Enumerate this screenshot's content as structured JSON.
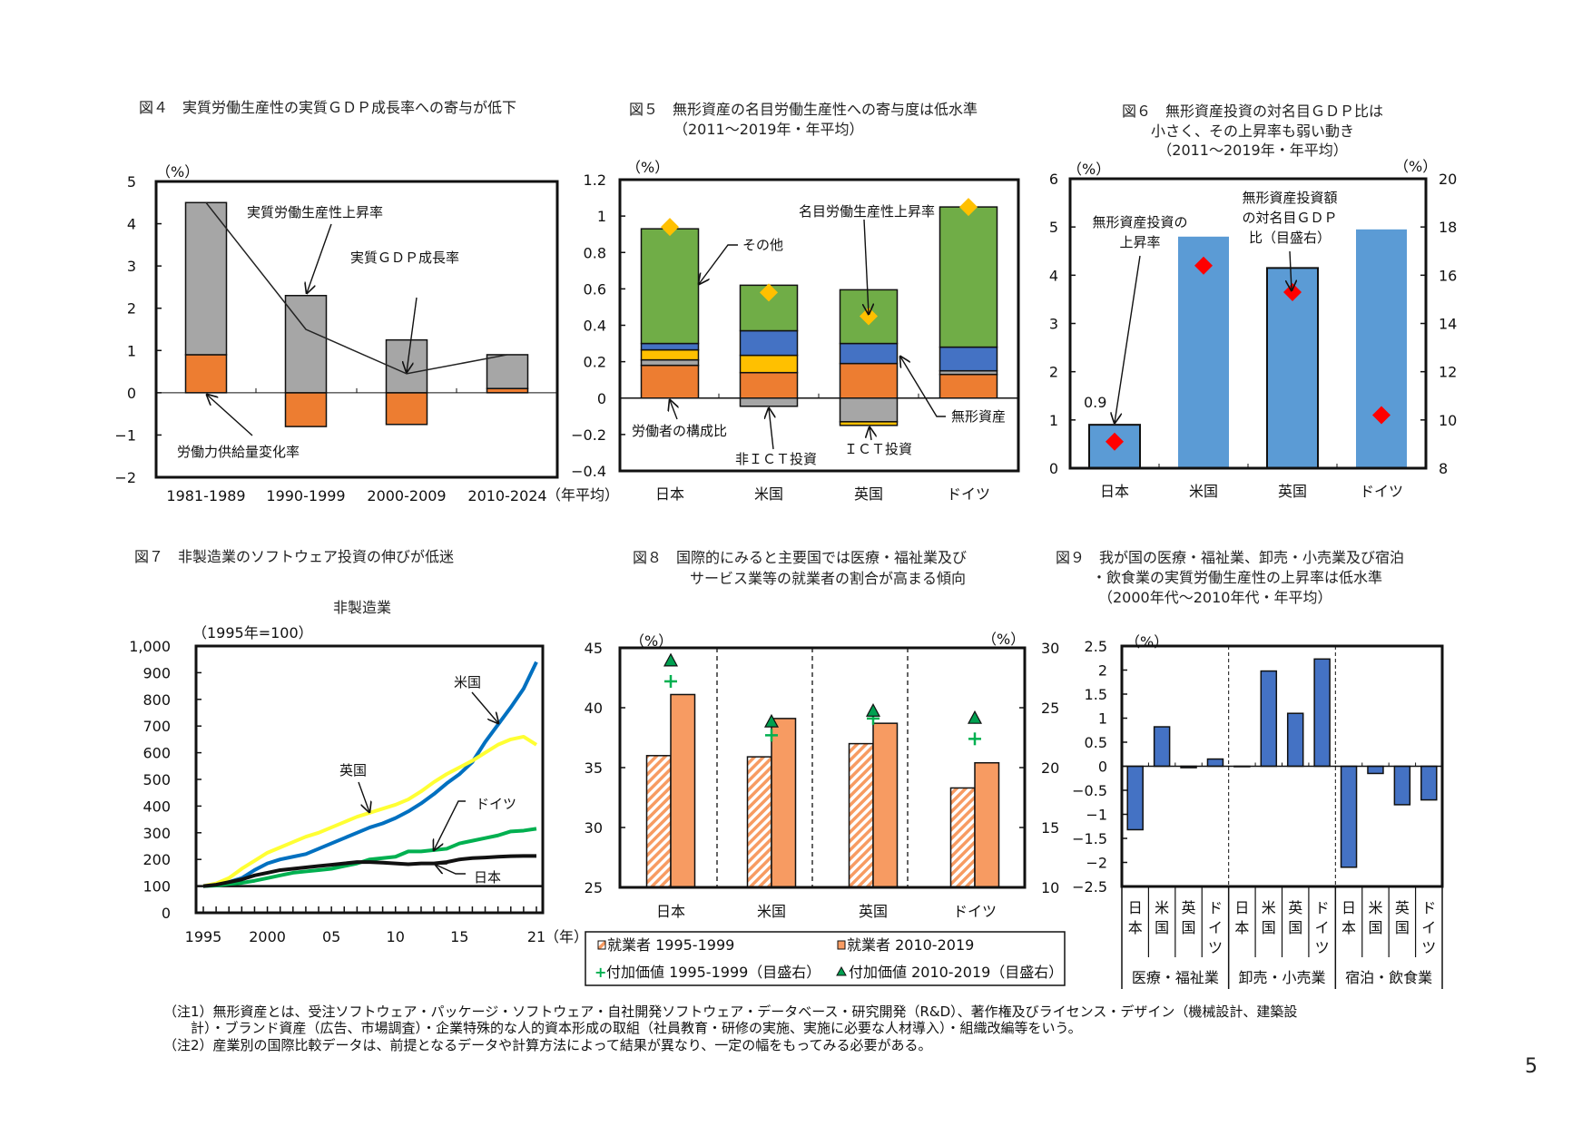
{
  "page_number": "5",
  "footnotes": [
    "（注1）無形資産とは、受注ソフトウェア・パッケージ・ソフトウェア・自社開発ソフトウェア・データベース・研究開発（R&D）、著作権及びライセンス・デザイン（機械設計、建築設",
    "　　計）・ブランド資産（広告、市場調査）・企業特殊的な人的資本形成の取組（社員教育・研修の実施、実施に必要な人材導入）・組織改編等をいう。",
    "（注2）産業別の国際比較データは、前提となるデータや計算方法によって結果が異なり、一定の幅をもってみる必要がある。"
  ],
  "titles": {
    "fig4": [
      "図４　実質労働生産性の実質ＧＤＰ成長率への寄与が低下"
    ],
    "fig5": [
      "図５　無形資産の名目労働生産性への寄与度は低水準",
      "（2011～2019年・年平均）"
    ],
    "fig6": [
      "図６　無形資産投資の対名目ＧＤＰ比は",
      "小さく、その上昇率も弱い動き",
      "（2011～2019年・年平均）"
    ],
    "fig7": [
      "図７　非製造業のソフトウェア投資の伸びが低迷"
    ],
    "fig8": [
      "図８　国際的にみると主要国では医療・福祉業及び",
      "サービス業等の就業者の割合が高まる傾向"
    ],
    "fig9": [
      "図９　我が国の医療・福祉業、卸売・小売業及び宿泊",
      "・飲食業の実質労働生産性の上昇率は低水準",
      "（2000年代～2010年代・年平均）"
    ]
  },
  "chart_data": [
    {
      "id": "fig4",
      "type": "bar",
      "stacked": true,
      "unit": "（%）",
      "categories": [
        "1981-1989",
        "1990-1999",
        "2000-2009",
        "2010-2024"
      ],
      "x_suffix": "（年平均）",
      "ylim": [
        -2,
        5
      ],
      "yticks": [
        5,
        4,
        3,
        2,
        1,
        0,
        -1,
        -2
      ],
      "series": [
        {
          "name": "労働力供給量変化率",
          "values": [
            0.9,
            -0.8,
            -0.75,
            0.1
          ],
          "color": "#ED7D31"
        },
        {
          "name": "実質労働生産性上昇率",
          "values": [
            3.6,
            2.3,
            1.25,
            0.8
          ],
          "color": "#A6A6A6"
        }
      ],
      "line": {
        "name": "実質ＧＤＰ成長率",
        "values": [
          4.5,
          1.5,
          0.45,
          0.9
        ],
        "color": "#222222"
      }
    },
    {
      "id": "fig5",
      "type": "bar",
      "stacked": true,
      "unit": "（%）",
      "categories": [
        "日本",
        "米国",
        "英国",
        "ドイツ"
      ],
      "ylim": [
        -0.4,
        1.2
      ],
      "yticks": [
        "1.2",
        "1",
        "0.8",
        "0.6",
        "0.4",
        "0.2",
        "0",
        "-0.2",
        "-0.4"
      ],
      "series": [
        {
          "name": "労働者の構成比",
          "values": [
            0.18,
            0.14,
            0.19,
            0.13
          ],
          "color": "#ED7D31"
        },
        {
          "name": "非ＩＣＴ投資",
          "values": [
            0.03,
            -0.045,
            -0.13,
            0.02
          ],
          "color": "#A6A6A6"
        },
        {
          "name": "ＩＣＴ投資",
          "values": [
            0.055,
            0.095,
            -0.02,
            0.0
          ],
          "color": "#FFC000"
        },
        {
          "name": "無形資産",
          "values": [
            0.035,
            0.135,
            0.11,
            0.13
          ],
          "color": "#4472C4"
        },
        {
          "name": "その他",
          "values": [
            0.63,
            0.25,
            0.295,
            0.77
          ],
          "color": "#70AD47"
        }
      ],
      "markers": {
        "name": "名目労働生産性上昇率",
        "values": [
          0.94,
          0.58,
          0.45,
          1.05
        ],
        "color": "#FFC000",
        "shape": "diamond"
      }
    },
    {
      "id": "fig6",
      "type": "bar",
      "unit_left": "（%）",
      "unit_right": "（%）",
      "categories": [
        "日本",
        "米国",
        "英国",
        "ドイツ"
      ],
      "ylim": [
        0,
        6
      ],
      "yticks": [
        6,
        5,
        4,
        3,
        2,
        1,
        0
      ],
      "y2lim": [
        8,
        20
      ],
      "y2ticks": [
        20,
        18,
        16,
        14,
        12,
        10,
        8
      ],
      "series": [
        {
          "name": "無形資産投資の上昇率",
          "name_lines": [
            "無形資産投資の",
            "上昇率"
          ],
          "values": [
            0.9,
            4.8,
            4.15,
            4.95
          ],
          "color": "#5B9BD5"
        }
      ],
      "markers": {
        "name": "無形資産投資額の対名目ＧＤＰ比（目盛右）",
        "name_lines": [
          "無形資産投資額",
          "の対名目ＧＤＰ",
          "比（目盛右）"
        ],
        "values": [
          9.1,
          16.4,
          15.3,
          10.2
        ],
        "color": "#FF0000",
        "shape": "diamond",
        "axis": "right"
      },
      "data_labels": [
        "0.9"
      ]
    },
    {
      "id": "fig7",
      "type": "line",
      "subtitle": "非製造業",
      "unit": "（1995年=100）",
      "x": [
        1995,
        1996,
        1997,
        1998,
        1999,
        2000,
        2001,
        2002,
        2003,
        2004,
        2005,
        2006,
        2007,
        2008,
        2009,
        2010,
        2011,
        2012,
        2013,
        2014,
        2015,
        2016,
        2017,
        2018,
        2019,
        2020,
        2021
      ],
      "xticks": [
        {
          "year": 1995,
          "label": "1995"
        },
        {
          "year": 2000,
          "label": "2000"
        },
        {
          "year": 2005,
          "label": "05"
        },
        {
          "year": 2010,
          "label": "10"
        },
        {
          "year": 2015,
          "label": "15"
        },
        {
          "year": 2021,
          "label": "21"
        }
      ],
      "x_unit": "（年）",
      "ylim": [
        0,
        1000
      ],
      "yticks": [
        "1,000",
        "900",
        "800",
        "700",
        "600",
        "500",
        "400",
        "300",
        "200",
        "100",
        "0"
      ],
      "series": [
        {
          "name": "米国",
          "color": "#0070C0",
          "values": [
            100,
            105,
            115,
            130,
            160,
            185,
            200,
            210,
            220,
            240,
            260,
            280,
            300,
            320,
            335,
            355,
            380,
            410,
            445,
            485,
            520,
            565,
            640,
            705,
            770,
            840,
            940
          ]
        },
        {
          "name": "英国",
          "color": "#FFFF33",
          "values": [
            100,
            110,
            130,
            165,
            195,
            225,
            245,
            265,
            285,
            300,
            320,
            340,
            360,
            375,
            390,
            405,
            425,
            455,
            490,
            520,
            545,
            570,
            600,
            630,
            650,
            660,
            630
          ]
        },
        {
          "name": "ドイツ",
          "color": "#00B050",
          "values": [
            100,
            102,
            108,
            112,
            120,
            130,
            140,
            150,
            155,
            160,
            165,
            175,
            185,
            200,
            205,
            210,
            230,
            230,
            235,
            240,
            260,
            270,
            280,
            290,
            305,
            308,
            315
          ]
        },
        {
          "name": "日本",
          "color": "#111111",
          "values": [
            100,
            105,
            115,
            125,
            140,
            150,
            160,
            165,
            170,
            175,
            180,
            185,
            190,
            190,
            188,
            185,
            182,
            185,
            185,
            190,
            200,
            205,
            207,
            210,
            212,
            213,
            213
          ]
        }
      ]
    },
    {
      "id": "fig8",
      "type": "bar",
      "unit_left": "（%）",
      "unit_right": "（%）",
      "categories": [
        "日本",
        "米国",
        "英国",
        "ドイツ"
      ],
      "ylim": [
        25,
        45
      ],
      "yticks": [
        45,
        40,
        35,
        30,
        25
      ],
      "y2lim": [
        10,
        30
      ],
      "y2ticks": [
        30,
        25,
        20,
        15,
        10
      ],
      "series": [
        {
          "name": "就業者 1995-1999",
          "values": [
            36.0,
            35.9,
            37.0,
            33.3
          ],
          "color": "#F79B62",
          "pattern": "hatched"
        },
        {
          "name": "就業者 2010-2019",
          "values": [
            41.1,
            39.1,
            38.7,
            35.4
          ],
          "color": "#F79B62"
        }
      ],
      "markers": [
        {
          "name": "付加価値 1995-1999（目盛右）",
          "values": [
            27.2,
            22.7,
            24.1,
            22.4
          ],
          "color": "#00B050",
          "shape": "plus",
          "axis": "right"
        },
        {
          "name": "付加価値 2010-2019（目盛右）",
          "values": [
            28.8,
            23.7,
            24.6,
            24.0
          ],
          "color": "#00A050",
          "shape": "triangle",
          "axis": "right"
        }
      ],
      "legend": "bottom"
    },
    {
      "id": "fig9",
      "type": "bar",
      "unit": "（%）",
      "ylim": [
        -2.5,
        2.5
      ],
      "yticks": [
        "2.5",
        "2",
        "1.5",
        "1",
        "0.5",
        "0",
        "-0.5",
        "-1",
        "-1.5",
        "-2",
        "-2.5"
      ],
      "groups": [
        {
          "name": "医療・福祉業",
          "categories": [
            "日本",
            "米国",
            "英国",
            "ドイツ"
          ],
          "values": [
            -1.32,
            0.82,
            -0.03,
            0.15
          ]
        },
        {
          "name": "卸売・小売業",
          "categories": [
            "日本",
            "米国",
            "英国",
            "ドイツ"
          ],
          "values": [
            0.0,
            1.98,
            1.1,
            2.23
          ]
        },
        {
          "name": "宿泊・飲食業",
          "categories": [
            "日本",
            "米国",
            "英国",
            "ドイツ"
          ],
          "values": [
            -2.1,
            -0.15,
            -0.8,
            -0.7
          ]
        }
      ],
      "color": "#4472C4"
    }
  ]
}
